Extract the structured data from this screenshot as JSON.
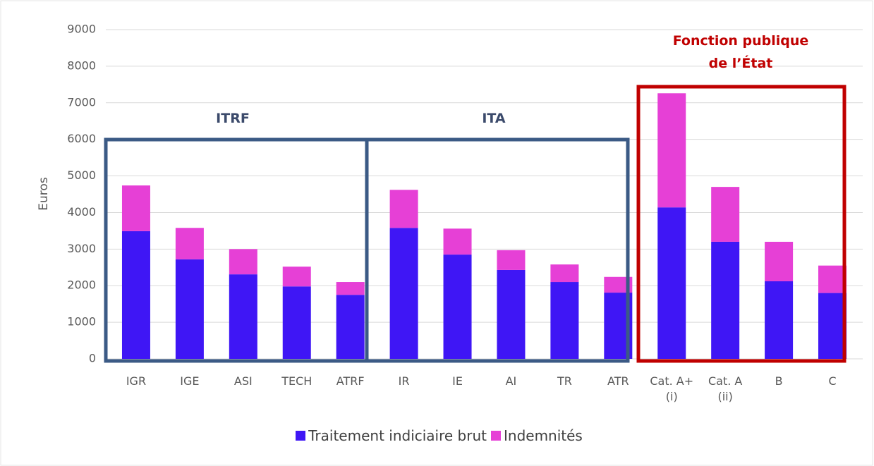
{
  "chart_data": {
    "type": "stacked_bar",
    "y_label": "Euros",
    "categories": [
      "IGR",
      "IGE",
      "ASI",
      "TECH",
      "ATRF",
      "IR",
      "IE",
      "AI",
      "TR",
      "ATR",
      "Cat. A+\n(i)",
      "Cat. A\n(ii)",
      "B",
      "C"
    ],
    "series": [
      {
        "name": "Traitement indiciaire brut",
        "color": "#3f16f5",
        "values": [
          3490,
          2720,
          2310,
          1980,
          1750,
          3580,
          2850,
          2430,
          2100,
          1810,
          4140,
          3200,
          2120,
          1800
        ]
      },
      {
        "name": "Indemnités",
        "color": "#e640d6",
        "values": [
          1250,
          860,
          690,
          540,
          350,
          1040,
          710,
          540,
          480,
          430,
          3120,
          1500,
          1080,
          750
        ]
      }
    ],
    "annotations": [
      "ITRF",
      "ITA",
      "Fonction publique\nde l’État"
    ],
    "ylim": [
      0,
      9000
    ],
    "yticks": [
      0,
      1000,
      2000,
      3000,
      4000,
      5000,
      6000,
      7000,
      8000,
      9000
    ],
    "grid": true
  }
}
